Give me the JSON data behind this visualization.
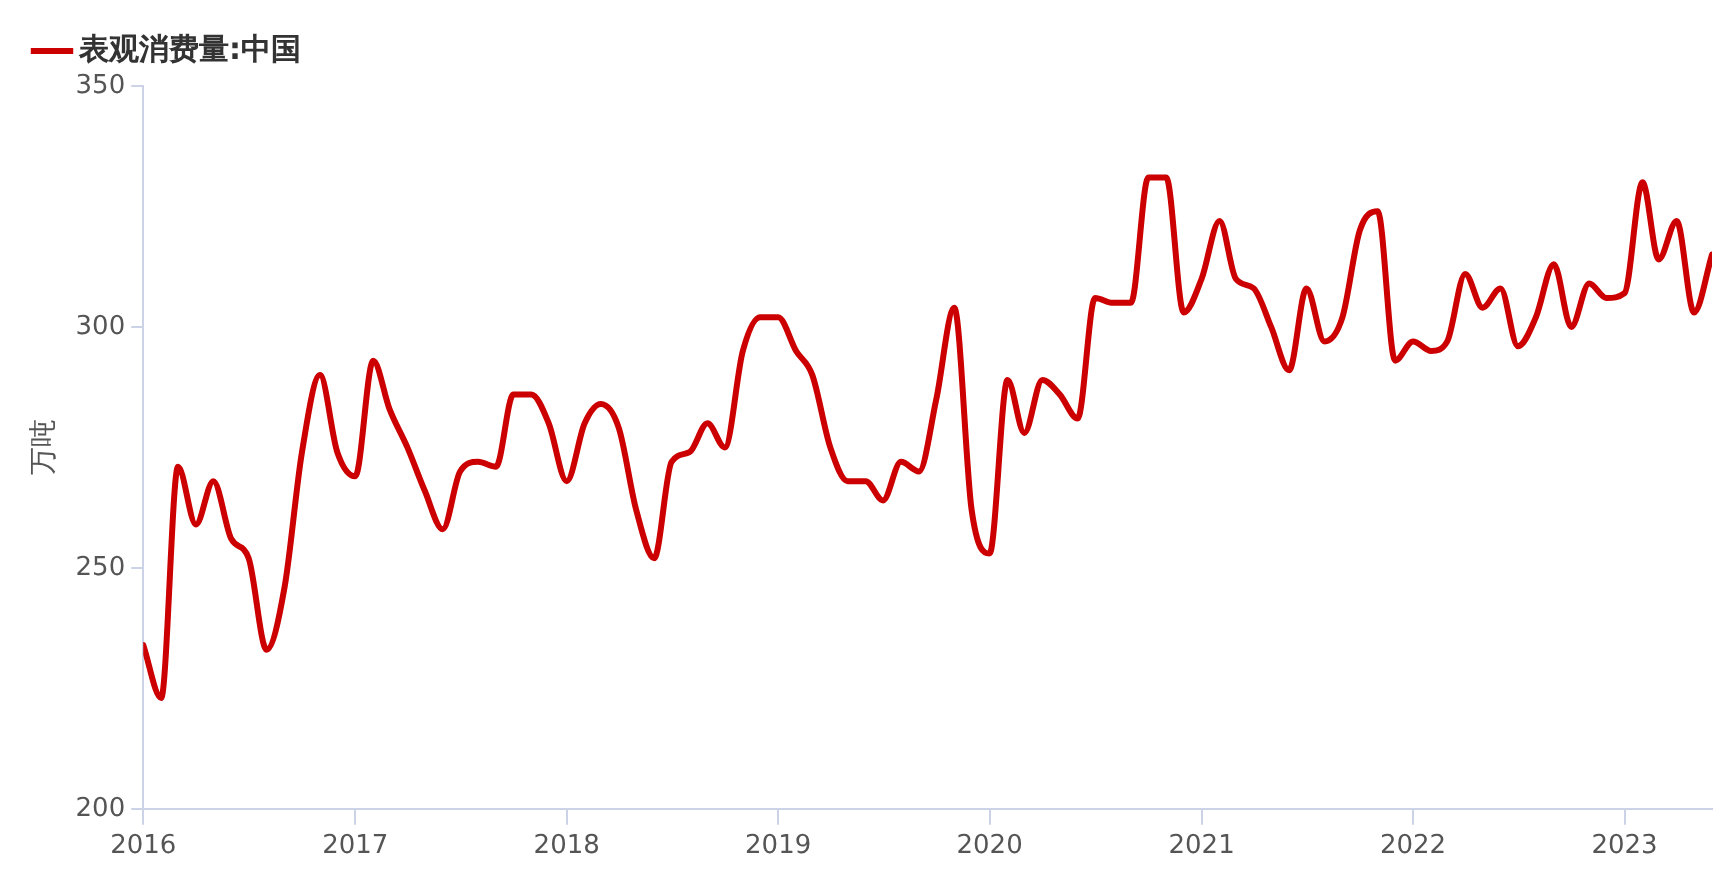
{
  "chart_data": {
    "type": "line",
    "ylabel": "万吨",
    "legend": "top left",
    "grid": false,
    "marker": "none",
    "line_style": "solid",
    "xlim": [
      "2016-01",
      "2023-06"
    ],
    "xticks": [
      "2016",
      "2017",
      "2018",
      "2019",
      "2020",
      "2021",
      "2022",
      "2023"
    ],
    "ylim": [
      200,
      350
    ],
    "yticks": [
      200,
      250,
      300,
      350
    ],
    "x": [
      "2016-01",
      "2016-02",
      "2016-03",
      "2016-04",
      "2016-05",
      "2016-06",
      "2016-07",
      "2016-08",
      "2016-09",
      "2016-10",
      "2016-11",
      "2016-12",
      "2017-01",
      "2017-02",
      "2017-03",
      "2017-04",
      "2017-05",
      "2017-06",
      "2017-07",
      "2017-08",
      "2017-09",
      "2017-10",
      "2017-11",
      "2017-12",
      "2018-01",
      "2018-02",
      "2018-03",
      "2018-04",
      "2018-05",
      "2018-06",
      "2018-07",
      "2018-08",
      "2018-09",
      "2018-10",
      "2018-11",
      "2018-12",
      "2019-01",
      "2019-02",
      "2019-03",
      "2019-04",
      "2019-05",
      "2019-06",
      "2019-07",
      "2019-08",
      "2019-09",
      "2019-10",
      "2019-11",
      "2019-12",
      "2020-01",
      "2020-02",
      "2020-03",
      "2020-04",
      "2020-05",
      "2020-06",
      "2020-07",
      "2020-08",
      "2020-09",
      "2020-10",
      "2020-11",
      "2020-12",
      "2021-01",
      "2021-02",
      "2021-03",
      "2021-04",
      "2021-05",
      "2021-06",
      "2021-07",
      "2021-08",
      "2021-09",
      "2021-10",
      "2021-11",
      "2021-12",
      "2022-01",
      "2022-02",
      "2022-03",
      "2022-04",
      "2022-05",
      "2022-06",
      "2022-07",
      "2022-08",
      "2022-09",
      "2022-10",
      "2022-11",
      "2022-12",
      "2023-01",
      "2023-02",
      "2023-03",
      "2023-04",
      "2023-05",
      "2023-06"
    ],
    "series": [
      {
        "name": "表观消费量:中国",
        "color": "#cc0000",
        "values": [
          234,
          223,
          271,
          259,
          268,
          256,
          252,
          233,
          246,
          274,
          290,
          274,
          269,
          293,
          283,
          275,
          266,
          258,
          270,
          272,
          271,
          286,
          286,
          280,
          268,
          280,
          284,
          279,
          262,
          252,
          272,
          274,
          280,
          275,
          295,
          302,
          302,
          295,
          290,
          275,
          268,
          268,
          264,
          272,
          270,
          285,
          304,
          262,
          253,
          289,
          278,
          289,
          286,
          281,
          306,
          305,
          305,
          331,
          331,
          303,
          310,
          322,
          310,
          308,
          300,
          291,
          308,
          297,
          302,
          320,
          324,
          293,
          297,
          295,
          297,
          311,
          304,
          308,
          296,
          302,
          313,
          300,
          309,
          306,
          307,
          330,
          314,
          322,
          303,
          315
        ]
      }
    ]
  }
}
